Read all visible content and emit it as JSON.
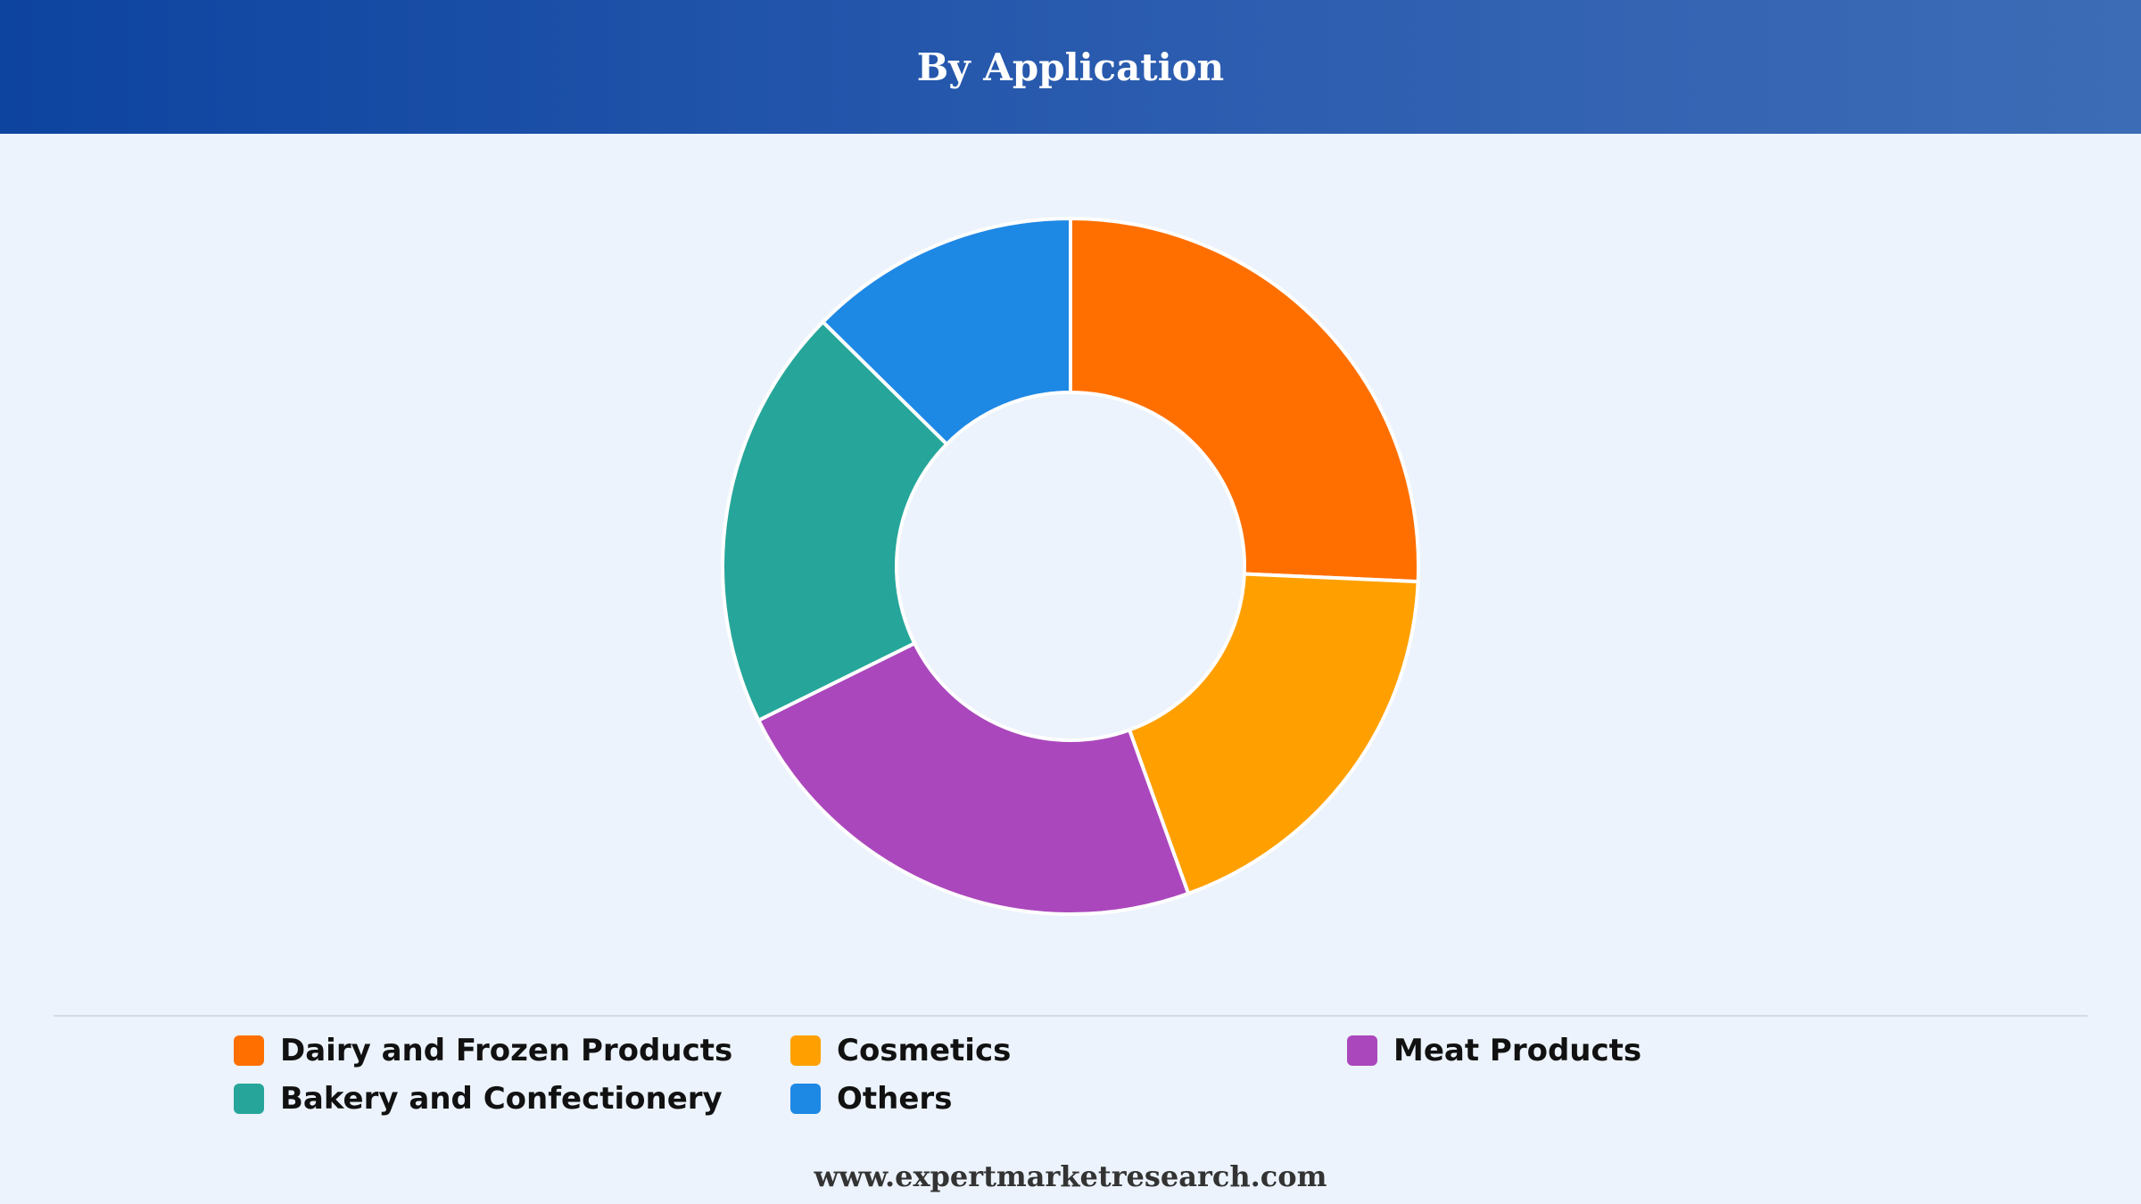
{
  "header": {
    "title": "By Application"
  },
  "footer": {
    "text": "www.expertmarketresearch.com"
  },
  "chart_data": {
    "type": "pie",
    "variant": "donut",
    "title": "By Application",
    "categories": [
      "Dairy and Frozen Products",
      "Cosmetics",
      "Meat Products",
      "Bakery and Confectionery",
      "Others"
    ],
    "values": [
      25.7,
      18.8,
      23.2,
      19.7,
      12.6
    ],
    "colors": [
      "#ff6f00",
      "#ffa000",
      "#ab47bc",
      "#26a69a",
      "#1e88e5"
    ],
    "legend_position": "bottom"
  }
}
